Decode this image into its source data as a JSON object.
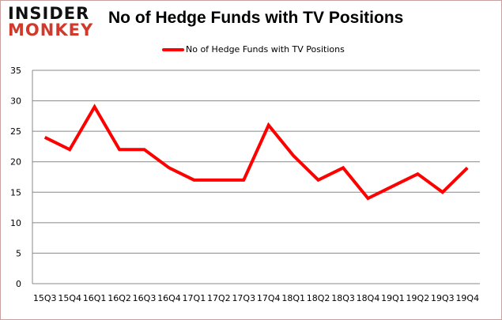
{
  "logo": {
    "line1": "INSIDER",
    "line2": "MONKEY"
  },
  "chart_data": {
    "type": "line",
    "title": "No of Hedge Funds with TV Positions",
    "xlabel": "",
    "ylabel": "",
    "categories": [
      "15Q3",
      "15Q4",
      "16Q1",
      "16Q2",
      "16Q3",
      "16Q4",
      "17Q1",
      "17Q2",
      "17Q3",
      "17Q4",
      "18Q1",
      "18Q2",
      "18Q3",
      "18Q4",
      "19Q1",
      "19Q2",
      "19Q3",
      "19Q4"
    ],
    "series": [
      {
        "name": "No of Hedge Funds with TV Positions",
        "color": "#ff0000",
        "values": [
          24,
          22,
          29,
          22,
          22,
          19,
          17,
          17,
          17,
          26,
          21,
          17,
          19,
          14,
          16,
          18,
          15,
          19
        ]
      }
    ],
    "ylim": [
      0,
      35
    ],
    "yticks": [
      0,
      5,
      10,
      15,
      20,
      25,
      30,
      35
    ],
    "grid": true,
    "legend": "top-center"
  }
}
